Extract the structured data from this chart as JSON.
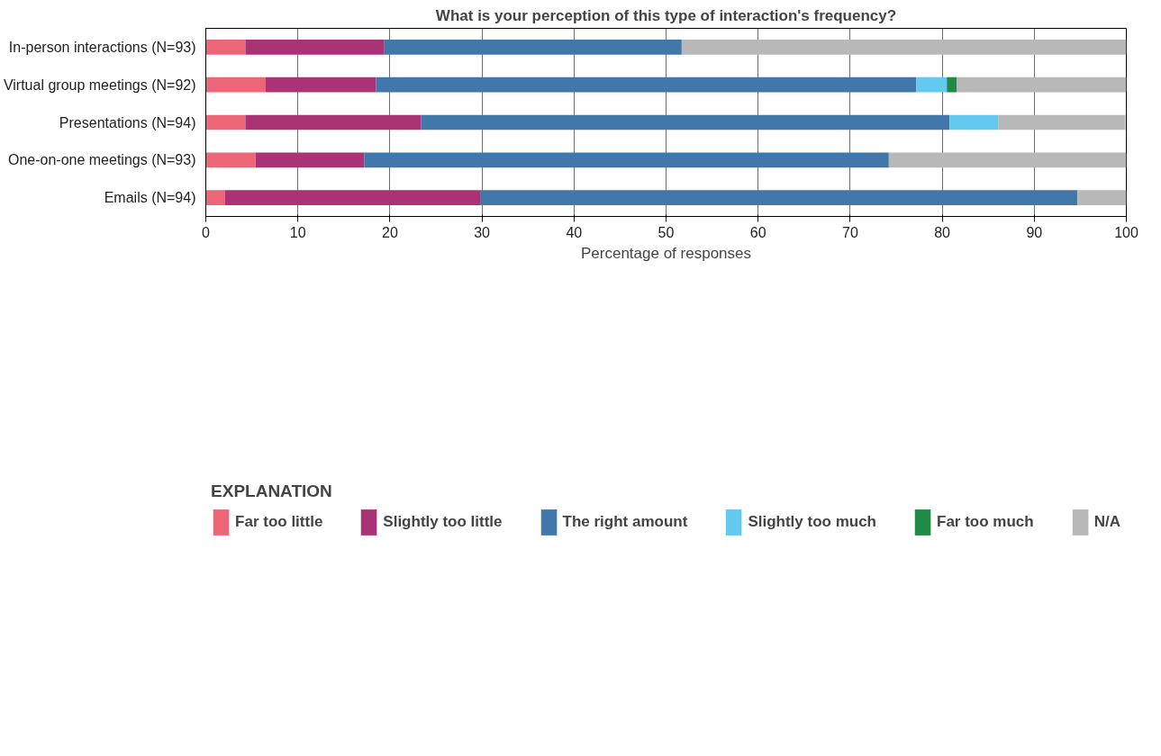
{
  "chart_data": {
    "type": "bar",
    "orientation": "horizontal",
    "stacked": true,
    "title": "What is your perception of this type of interaction's frequency?",
    "xlabel": "Percentage of responses",
    "legend_title": "EXPLANATION",
    "categories": [
      "In-person interactions (N=93)",
      "Virtual group meetings (N=92)",
      "Presentations (N=94)",
      "One-on-one meetings (N=93)",
      "Emails (N=94)"
    ],
    "series": [
      {
        "name": "Far too little",
        "color": "#ec6677",
        "values": [
          4.3,
          6.5,
          4.3,
          5.4,
          2.1
        ]
      },
      {
        "name": "Slightly too little",
        "color": "#a93375",
        "values": [
          15.1,
          12.0,
          19.1,
          11.8,
          27.7
        ]
      },
      {
        "name": "The right amount",
        "color": "#4277a9",
        "values": [
          32.3,
          58.7,
          57.4,
          57.0,
          64.9
        ]
      },
      {
        "name": "Slightly too much",
        "color": "#63c9ee",
        "values": [
          null,
          3.3,
          5.3,
          null,
          null
        ]
      },
      {
        "name": "Far too much",
        "color": "#218a46",
        "values": [
          null,
          1.1,
          null,
          null,
          null
        ]
      },
      {
        "name": "N/A",
        "color": "#b8b8b8",
        "values": [
          48.4,
          18.5,
          13.8,
          25.8,
          5.3
        ]
      }
    ],
    "xlim": [
      0,
      100
    ],
    "xticks": [
      0,
      10,
      20,
      30,
      40,
      50,
      60,
      70,
      80,
      90,
      100
    ],
    "grid": "x",
    "legend": "bottom"
  }
}
